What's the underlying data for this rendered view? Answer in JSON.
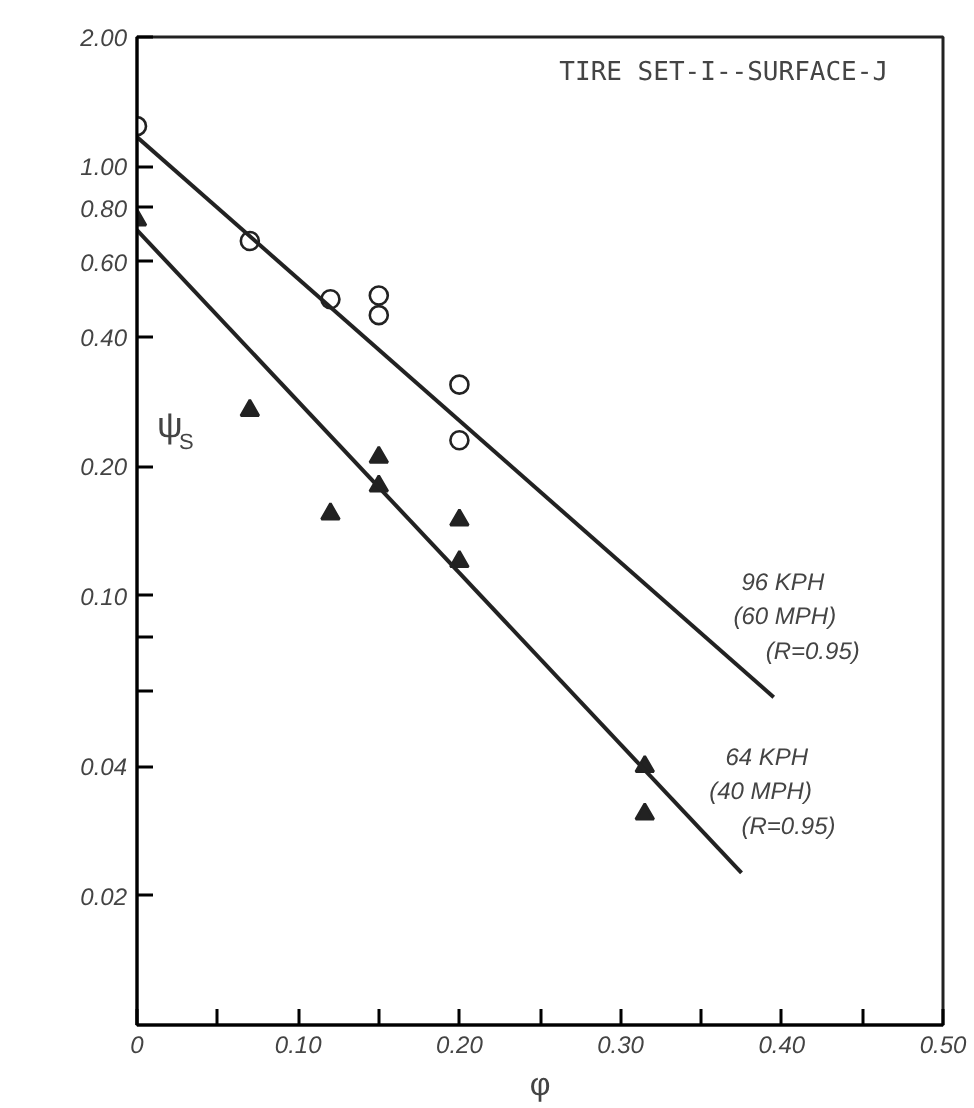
{
  "chart_data": {
    "type": "scatter",
    "title": "TIRE SET-I--SURFACE-J",
    "xlabel": "φ",
    "ylabel": "ψ$_{S}$",
    "log": "y",
    "grid": false,
    "xlim": [
      0,
      0.5
    ],
    "ylim": [
      0.01,
      2
    ],
    "xticks": [
      0,
      {
        "value": 0.05,
        "label": null
      },
      {
        "value": 0.1,
        "label": "0.10"
      },
      {
        "value": 0.15,
        "label": null
      },
      {
        "value": 0.2,
        "label": "0.20"
      },
      {
        "value": 0.25,
        "label": null
      },
      {
        "value": 0.3,
        "label": "0.30"
      },
      {
        "value": 0.35,
        "label": null
      },
      {
        "value": 0.4,
        "label": "0.40"
      },
      {
        "value": 0.45,
        "label": null
      },
      {
        "value": 0.5,
        "label": "0.50"
      }
    ],
    "yticks": [
      {
        "value": 2,
        "label": "2.00"
      },
      {
        "value": 1,
        "label": "1.00"
      },
      {
        "value": 0.8,
        "label": "0.80"
      },
      {
        "value": 0.6,
        "label": "0.60"
      },
      {
        "value": 0.4,
        "label": "0.40"
      },
      {
        "value": 0.2,
        "label": "0.20"
      },
      {
        "value": 0.1,
        "label": "0.10"
      },
      {
        "value": 0.08,
        "label": null
      },
      {
        "value": 0.06,
        "label": null
      },
      {
        "value": 0.04,
        "label": "0.04"
      },
      {
        "value": 0.02,
        "label": "0.02"
      }
    ],
    "series": [
      {
        "marker": "circle",
        "color": "#222222",
        "x": [
          0,
          0.07,
          0.12,
          0.15,
          0.15,
          0.2,
          0.2
        ],
        "values": [
          1.24,
          0.67,
          0.49,
          0.5,
          0.45,
          0.31,
          0.23
        ]
      },
      {
        "marker": "triangle",
        "color": "#222222",
        "x": [
          0,
          0.07,
          0.12,
          0.15,
          0.15,
          0.2,
          0.2,
          0.315,
          0.315
        ],
        "values": [
          0.75,
          0.27,
          0.155,
          0.21,
          0.18,
          0.15,
          0.12,
          0.04,
          0.031
        ]
      },
      {
        "type": "line",
        "line_style": "solid",
        "color": "#222222",
        "x": [
          0,
          0.395
        ],
        "values": [
          1.17,
          0.058
        ]
      },
      {
        "type": "line",
        "line_style": "solid",
        "color": "#222222",
        "x": [
          0,
          0.375
        ],
        "values": [
          0.71,
          0.0226
        ]
      }
    ],
    "annotations": [
      "96 KPH",
      "(60 MPH)",
      "(R=0.95)",
      "64 KPH",
      "(40 MPH)",
      "(R=0.95)"
    ]
  }
}
